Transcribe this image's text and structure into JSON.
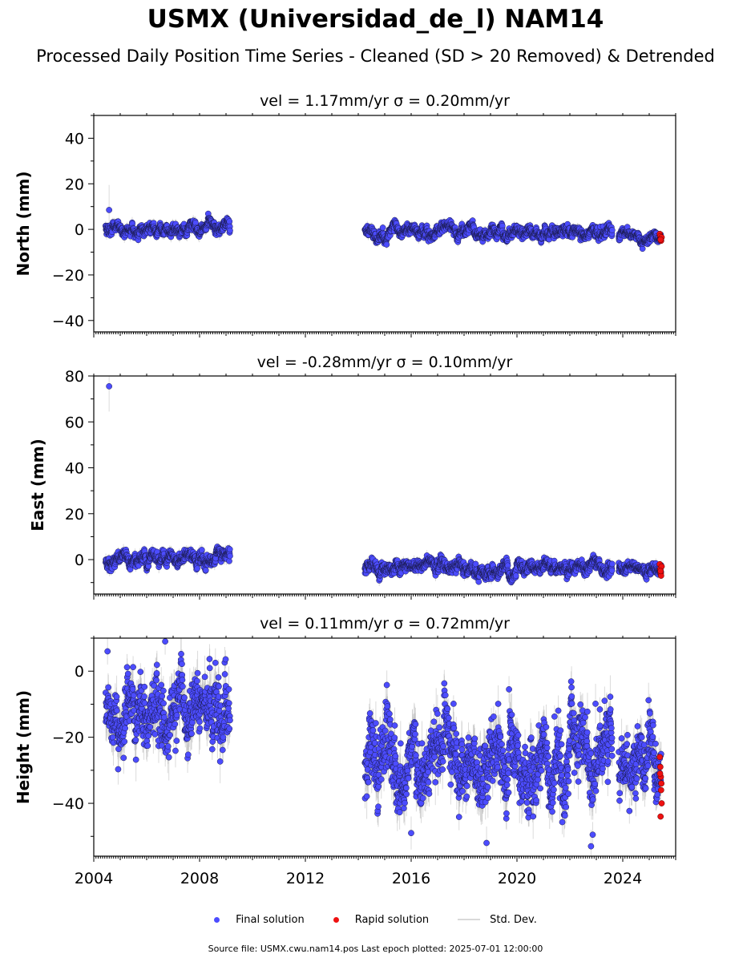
{
  "title": "USMX (Universidad_de_l) NAM14",
  "subtitle": "Processed Daily Position Time Series - Cleaned (SD > 20 Removed) & Detrended",
  "legend": {
    "final": "Final solution",
    "rapid": "Rapid solution",
    "std": "Std. Dev."
  },
  "footer": "Source file: USMX.cwu.nam14.pos  Last epoch plotted: 2025-07-01 12:00:00",
  "colors": {
    "final": "#4c4cff",
    "rapid": "#ee1111",
    "std": "#bdbdbd",
    "edge": "#1a1a4d"
  },
  "chart_data": [
    {
      "type": "scatter",
      "title": "vel = 1.17mm/yr   σ = 0.20mm/yr",
      "ylabel": "North (mm)",
      "xlim": [
        2004,
        2026
      ],
      "ylim": [
        -45,
        50
      ],
      "yticks": [
        -40,
        -20,
        0,
        20,
        40
      ],
      "xticks": [
        2004,
        2008,
        2012,
        2016,
        2020,
        2024
      ],
      "show_xticklabels": false,
      "segments": [
        {
          "start": 2004.45,
          "end": 2009.15,
          "mean": 0.5,
          "sd": 1.4,
          "err": 1.8
        },
        {
          "start": 2014.25,
          "end": 2023.6,
          "mean": -1.2,
          "sd": 1.4,
          "err": 1.6
        },
        {
          "start": 2023.85,
          "end": 2025.45,
          "mean": -3.0,
          "sd": 1.2,
          "err": 1.5
        }
      ],
      "outliers": [
        {
          "x": 2004.58,
          "y": 8.5,
          "err": 11
        }
      ],
      "rapid": [
        {
          "x": 2025.4,
          "y": -2
        },
        {
          "x": 2025.42,
          "y": -3
        },
        {
          "x": 2025.44,
          "y": -4
        },
        {
          "x": 2025.45,
          "y": -5
        },
        {
          "x": 2025.47,
          "y": -3.5
        },
        {
          "x": 2025.43,
          "y": -4.5
        }
      ],
      "seed": 11
    },
    {
      "type": "scatter",
      "title": "vel = -0.28mm/yr   σ = 0.10mm/yr",
      "ylabel": "East (mm)",
      "xlim": [
        2004,
        2026
      ],
      "ylim": [
        -15,
        80
      ],
      "yticks": [
        0,
        20,
        40,
        60,
        80
      ],
      "xticks": [
        2004,
        2008,
        2012,
        2016,
        2020,
        2024
      ],
      "show_xticklabels": false,
      "segments": [
        {
          "start": 2004.45,
          "end": 2009.15,
          "mean": 0.3,
          "sd": 1.6,
          "err": 2.0
        },
        {
          "start": 2014.25,
          "end": 2023.6,
          "mean": -3.5,
          "sd": 1.6,
          "err": 1.8
        },
        {
          "start": 2023.85,
          "end": 2025.45,
          "mean": -4.0,
          "sd": 1.4,
          "err": 1.6
        }
      ],
      "outliers": [
        {
          "x": 2004.58,
          "y": 75.5,
          "err": 11
        }
      ],
      "rapid": [
        {
          "x": 2025.4,
          "y": -2
        },
        {
          "x": 2025.42,
          "y": -4
        },
        {
          "x": 2025.44,
          "y": -6
        },
        {
          "x": 2025.45,
          "y": -7
        },
        {
          "x": 2025.47,
          "y": -3
        },
        {
          "x": 2025.43,
          "y": -5
        }
      ],
      "seed": 23
    },
    {
      "type": "scatter",
      "title": "vel = 0.11mm/yr   σ = 0.72mm/yr",
      "ylabel": "Height (mm)",
      "xlim": [
        2004,
        2026
      ],
      "ylim": [
        -56,
        10
      ],
      "yticks": [
        -40,
        -20,
        0
      ],
      "xticks": [
        2004,
        2008,
        2012,
        2016,
        2020,
        2024
      ],
      "show_xticklabels": true,
      "segments": [
        {
          "start": 2004.45,
          "end": 2009.15,
          "mean": -11,
          "sd": 5.5,
          "err": 5
        },
        {
          "start": 2014.25,
          "end": 2023.6,
          "mean": -28,
          "sd": 6,
          "err": 5
        },
        {
          "start": 2023.85,
          "end": 2025.45,
          "mean": -29,
          "sd": 5,
          "err": 4.5
        }
      ],
      "outliers": [
        {
          "x": 2004.52,
          "y": 6,
          "err": 4
        },
        {
          "x": 2006.7,
          "y": 9,
          "err": 4
        },
        {
          "x": 2019.7,
          "y": -5.5,
          "err": 4
        },
        {
          "x": 2016.0,
          "y": -49,
          "err": 5
        },
        {
          "x": 2022.8,
          "y": -53,
          "err": 5
        },
        {
          "x": 2018.85,
          "y": -52,
          "err": 5
        }
      ],
      "rapid": [
        {
          "x": 2025.4,
          "y": -26
        },
        {
          "x": 2025.42,
          "y": -29
        },
        {
          "x": 2025.44,
          "y": -32
        },
        {
          "x": 2025.45,
          "y": -36
        },
        {
          "x": 2025.47,
          "y": -40
        },
        {
          "x": 2025.43,
          "y": -44
        },
        {
          "x": 2025.41,
          "y": -31
        },
        {
          "x": 2025.46,
          "y": -34
        }
      ],
      "seed": 37
    }
  ]
}
